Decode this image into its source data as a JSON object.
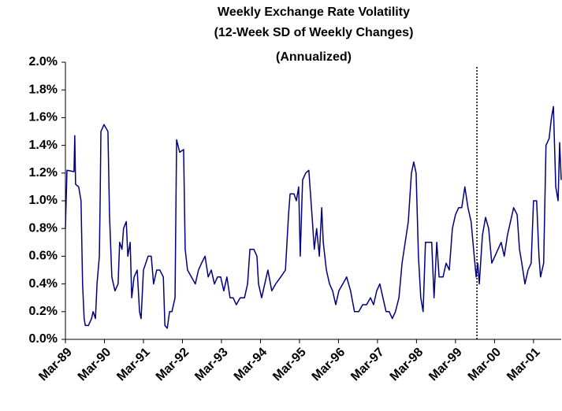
{
  "chart_data": {
    "type": "line",
    "title": [
      "Weekly Exchange Rate Volatility",
      "(12-Week SD of Weekly Changes)",
      "(Annualized)"
    ],
    "x": [
      1989.17,
      1989.21,
      1989.39,
      1989.41,
      1989.43,
      1989.51,
      1989.57,
      1989.61,
      1989.65,
      1989.68,
      1989.76,
      1989.84,
      1989.88,
      1989.94,
      1989.98,
      1990.04,
      1990.06,
      1990.08,
      1990.16,
      1990.26,
      1990.3,
      1990.36,
      1990.44,
      1990.52,
      1990.56,
      1990.62,
      1990.66,
      1990.73,
      1990.77,
      1990.83,
      1990.87,
      1990.93,
      1991.01,
      1991.07,
      1991.11,
      1991.17,
      1991.23,
      1991.29,
      1991.37,
      1991.43,
      1991.51,
      1991.59,
      1991.68,
      1991.72,
      1991.78,
      1991.84,
      1991.9,
      1991.98,
      1992.02,
      1992.1,
      1992.2,
      1992.24,
      1992.3,
      1992.4,
      1992.5,
      1992.58,
      1992.66,
      1992.75,
      1992.83,
      1992.91,
      1992.99,
      1993.07,
      1993.15,
      1993.23,
      1993.31,
      1993.39,
      1993.47,
      1993.55,
      1993.65,
      1993.76,
      1993.84,
      1993.9,
      1994.0,
      1994.08,
      1994.12,
      1994.2,
      1994.28,
      1994.36,
      1994.46,
      1994.56,
      1994.69,
      1994.81,
      1994.89,
      1994.93,
      1995.03,
      1995.09,
      1995.15,
      1995.19,
      1995.25,
      1995.33,
      1995.41,
      1995.49,
      1995.55,
      1995.61,
      1995.68,
      1995.74,
      1995.78,
      1995.86,
      1995.94,
      1996.02,
      1996.1,
      1996.18,
      1996.28,
      1996.38,
      1996.48,
      1996.58,
      1996.69,
      1996.79,
      1996.89,
      1996.99,
      1997.07,
      1997.15,
      1997.23,
      1997.31,
      1997.39,
      1997.47,
      1997.55,
      1997.63,
      1997.72,
      1997.8,
      1997.88,
      1997.96,
      1998.04,
      1998.1,
      1998.16,
      1998.22,
      1998.28,
      1998.34,
      1998.4,
      1998.48,
      1998.56,
      1998.62,
      1998.69,
      1998.75,
      1998.85,
      1998.93,
      1999.01,
      1999.09,
      1999.17,
      1999.25,
      1999.33,
      1999.41,
      1999.49,
      1999.57,
      1999.65,
      1999.7,
      1999.74,
      1999.78,
      1999.86,
      1999.94,
      2000.02,
      2000.1,
      2000.18,
      2000.26,
      2000.34,
      2000.42,
      2000.5,
      2000.58,
      2000.66,
      2000.75,
      2000.81,
      2000.87,
      2000.95,
      2001.03,
      2001.11,
      2001.17,
      2001.25,
      2001.31,
      2001.35,
      2001.43,
      2001.49,
      2001.57,
      2001.63,
      2001.68,
      2001.74,
      2001.8,
      2001.84,
      2001.88
    ],
    "values": [
      0.8,
      1.22,
      1.21,
      1.47,
      1.12,
      1.1,
      1.0,
      0.4,
      0.15,
      0.1,
      0.1,
      0.15,
      0.2,
      0.15,
      0.4,
      0.6,
      1.0,
      1.5,
      1.55,
      1.5,
      0.9,
      0.45,
      0.35,
      0.4,
      0.7,
      0.65,
      0.8,
      0.85,
      0.6,
      0.7,
      0.3,
      0.45,
      0.5,
      0.2,
      0.15,
      0.5,
      0.55,
      0.6,
      0.6,
      0.4,
      0.5,
      0.5,
      0.45,
      0.1,
      0.08,
      0.2,
      0.2,
      0.3,
      1.44,
      1.35,
      1.37,
      0.65,
      0.5,
      0.45,
      0.4,
      0.5,
      0.55,
      0.6,
      0.45,
      0.5,
      0.4,
      0.45,
      0.45,
      0.35,
      0.45,
      0.3,
      0.3,
      0.25,
      0.3,
      0.3,
      0.4,
      0.65,
      0.65,
      0.6,
      0.4,
      0.3,
      0.4,
      0.5,
      0.35,
      0.4,
      0.45,
      0.5,
      0.9,
      1.05,
      1.05,
      1.0,
      1.1,
      0.6,
      1.15,
      1.2,
      1.22,
      0.9,
      0.65,
      0.8,
      0.6,
      0.95,
      0.7,
      0.5,
      0.4,
      0.35,
      0.25,
      0.35,
      0.4,
      0.45,
      0.35,
      0.2,
      0.2,
      0.25,
      0.25,
      0.3,
      0.25,
      0.35,
      0.4,
      0.3,
      0.2,
      0.2,
      0.15,
      0.2,
      0.3,
      0.55,
      0.7,
      0.85,
      1.2,
      1.28,
      1.2,
      0.6,
      0.3,
      0.2,
      0.7,
      0.7,
      0.7,
      0.3,
      0.7,
      0.45,
      0.45,
      0.55,
      0.5,
      0.8,
      0.9,
      0.95,
      0.95,
      1.1,
      0.95,
      0.85,
      0.6,
      0.45,
      0.55,
      0.4,
      0.75,
      0.88,
      0.8,
      0.55,
      0.6,
      0.65,
      0.7,
      0.6,
      0.75,
      0.85,
      0.95,
      0.9,
      0.65,
      0.55,
      0.4,
      0.5,
      0.55,
      1.0,
      1.0,
      0.6,
      0.45,
      0.55,
      1.4,
      1.45,
      1.6,
      1.68,
      1.1,
      1.0,
      1.42,
      1.15
    ],
    "color": "#000080",
    "xlim": [
      1989.17,
      2001.88
    ],
    "xticks": [
      {
        "value": 1989.17,
        "label": "Mar-89"
      },
      {
        "value": 1990.17,
        "label": "Mar-90"
      },
      {
        "value": 1991.17,
        "label": "Mar-91"
      },
      {
        "value": 1992.17,
        "label": "Mar-92"
      },
      {
        "value": 1993.17,
        "label": "Mar-93"
      },
      {
        "value": 1994.17,
        "label": "Mar-94"
      },
      {
        "value": 1995.17,
        "label": "Mar-95"
      },
      {
        "value": 1996.17,
        "label": "Mar-96"
      },
      {
        "value": 1997.17,
        "label": "Mar-97"
      },
      {
        "value": 1998.17,
        "label": "Mar-98"
      },
      {
        "value": 1999.17,
        "label": "Mar-99"
      },
      {
        "value": 2000.17,
        "label": "Mar-00"
      },
      {
        "value": 2001.17,
        "label": "Mar-01"
      }
    ],
    "ylim": [
      0,
      2
    ],
    "yticks": [
      {
        "value": 0,
        "label": "0.0%"
      },
      {
        "value": 0.2,
        "label": "0.2%"
      },
      {
        "value": 0.4,
        "label": "0.4%"
      },
      {
        "value": 0.6,
        "label": "0.6%"
      },
      {
        "value": 0.8,
        "label": "0.8%"
      },
      {
        "value": 1.0,
        "label": "1.0%"
      },
      {
        "value": 1.2,
        "label": "1.2%"
      },
      {
        "value": 1.4,
        "label": "1.4%"
      },
      {
        "value": 1.6,
        "label": "1.6%"
      },
      {
        "value": 1.8,
        "label": "1.8%"
      },
      {
        "value": 2.0,
        "label": "2.0%"
      }
    ],
    "vlines": [
      1999.72
    ],
    "grid": false
  }
}
